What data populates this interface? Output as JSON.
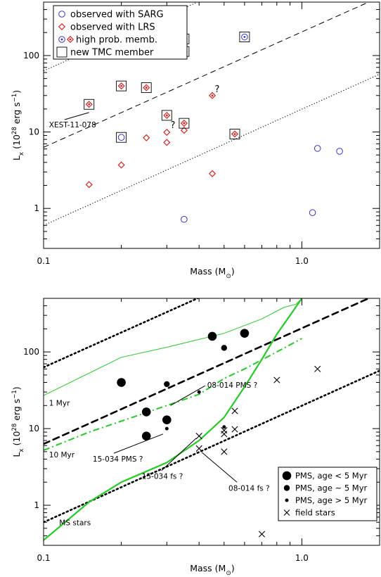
{
  "chart_data": [
    {
      "type": "scatter",
      "xscale": "log",
      "yscale": "log",
      "xlim": [
        0.1,
        2.0
      ],
      "ylim": [
        0.3,
        500
      ],
      "xticks": [
        "0.1",
        "1.0"
      ],
      "yticks": [
        "1",
        "10",
        "100"
      ],
      "xlabel": "Mass (M",
      "xlabel_sym": "⊙",
      "xlabel_end": ")",
      "ylabel": "L",
      "ylabel_sub": "x",
      "ylabel_mid": " (10",
      "ylabel_exp": "28",
      "ylabel_unit": " erg s",
      "ylabel_unit_exp": "−1",
      "ylabel_end": ")",
      "legend": {
        "position": "top-left",
        "entries": [
          {
            "label": "observed with SARG",
            "marker": "blue-circle-open"
          },
          {
            "label": "observed with LRS",
            "marker": "red-diamond-open"
          },
          {
            "label": "high prob. memb.",
            "marker": "dotted-circle-and-diamond"
          },
          {
            "label": "new TMC member",
            "marker": "square-open"
          }
        ]
      },
      "series": [
        {
          "marker": "blue-circle-open",
          "color": "#3333cc",
          "points": [
            [
              0.2,
              8.5
            ],
            [
              0.35,
              0.72
            ],
            [
              1.1,
              0.88
            ],
            [
              1.15,
              6.1
            ],
            [
              1.4,
              5.6
            ]
          ]
        },
        {
          "marker": "blue-circle-dotted",
          "color": "#3333cc",
          "points": [
            [
              0.35,
              165
            ],
            [
              0.6,
              175
            ]
          ]
        },
        {
          "marker": "red-diamond-open",
          "color": "#dd2222",
          "points": [
            [
              0.15,
              2.05
            ],
            [
              0.2,
              3.7
            ],
            [
              0.25,
              8.4
            ],
            [
              0.3,
              7.3
            ],
            [
              0.3,
              9.9
            ],
            [
              0.35,
              10.5
            ],
            [
              0.45,
              2.85
            ]
          ]
        },
        {
          "marker": "red-diamond-dotted",
          "color": "#dd2222",
          "points": [
            [
              0.15,
              23
            ],
            [
              0.2,
              40
            ],
            [
              0.25,
              38
            ],
            [
              0.3,
              16.5
            ],
            [
              0.35,
              13
            ],
            [
              0.35,
              113
            ],
            [
              0.45,
              30
            ],
            [
              0.55,
              9.4
            ]
          ]
        },
        {
          "marker": "square-open",
          "color": "#000000",
          "points": [
            [
              0.15,
              23
            ],
            [
              0.2,
              40
            ],
            [
              0.25,
              38
            ],
            [
              0.3,
              16.5
            ],
            [
              0.35,
              13
            ],
            [
              0.55,
              9.4
            ],
            [
              0.2,
              8.5
            ],
            [
              0.35,
              165
            ],
            [
              0.35,
              113
            ],
            [
              0.6,
              175
            ]
          ]
        }
      ],
      "lines": [
        {
          "style": "dashed",
          "from": [
            0.1,
            6.3
          ],
          "to": [
            2.0,
            580
          ]
        },
        {
          "style": "dotted",
          "from": [
            0.1,
            0.6
          ],
          "to": [
            2.0,
            57
          ]
        },
        {
          "style": "dotted",
          "from": [
            0.1,
            63
          ],
          "to": [
            2.0,
            5800
          ]
        }
      ],
      "annotations": [
        {
          "text": "XEST-11-078",
          "at": [
            0.105,
            11.5
          ],
          "pointer_to": [
            0.15,
            18
          ]
        },
        {
          "text": "?",
          "at": [
            0.46,
            33
          ]
        },
        {
          "text": "?",
          "at": [
            0.31,
            11.2
          ]
        }
      ]
    },
    {
      "type": "scatter",
      "xscale": "log",
      "yscale": "log",
      "xlim": [
        0.1,
        2.0
      ],
      "ylim": [
        0.3,
        500
      ],
      "xticks": [
        "0.1",
        "1.0"
      ],
      "yticks": [
        "1",
        "10",
        "100"
      ],
      "xlabel": "Mass (M",
      "xlabel_sym": "⊙",
      "xlabel_end": ")",
      "ylabel": "L",
      "ylabel_sub": "x",
      "ylabel_mid": " (10",
      "ylabel_exp": "28",
      "ylabel_unit": " erg s",
      "ylabel_unit_exp": "−1",
      "ylabel_end": ")",
      "legend": {
        "position": "bottom-right",
        "entries": [
          {
            "label": "PMS, age < 5 Myr",
            "marker": "dot-large"
          },
          {
            "label": "PMS, age ~ 5 Myr",
            "marker": "dot-medium"
          },
          {
            "label": "PMS, age > 5 Myr",
            "marker": "dot-small"
          },
          {
            "label": "field stars",
            "marker": "cross"
          }
        ]
      },
      "series": [
        {
          "name": "PMS, age < 5 Myr",
          "marker": "dot-large",
          "points": [
            [
              0.2,
              40
            ],
            [
              0.25,
              16.5
            ],
            [
              0.25,
              8
            ],
            [
              0.3,
              13
            ],
            [
              0.45,
              160
            ],
            [
              0.6,
              175
            ]
          ]
        },
        {
          "name": "PMS, age ~ 5 Myr",
          "marker": "dot-medium",
          "points": [
            [
              0.3,
              38
            ],
            [
              0.5,
              113
            ]
          ]
        },
        {
          "name": "PMS, age > 5 Myr",
          "marker": "dot-small",
          "points": [
            [
              0.3,
              10
            ],
            [
              0.4,
              30
            ],
            [
              0.5,
              10.5
            ]
          ]
        },
        {
          "name": "field stars",
          "marker": "cross",
          "points": [
            [
              0.4,
              5.5
            ],
            [
              0.4,
              8
            ],
            [
              0.5,
              5
            ],
            [
              0.5,
              8.5
            ],
            [
              0.5,
              9.5
            ],
            [
              0.55,
              17
            ],
            [
              0.55,
              9.8
            ],
            [
              0.8,
              43
            ],
            [
              1.15,
              60
            ],
            [
              0.7,
              0.42
            ]
          ]
        }
      ],
      "lines": [
        {
          "style": "dashed-thick",
          "from": [
            0.1,
            6.3
          ],
          "to": [
            2.0,
            580
          ]
        },
        {
          "style": "dotted-thick",
          "from": [
            0.1,
            0.6
          ],
          "to": [
            2.0,
            57
          ]
        },
        {
          "style": "dotted-thick",
          "from": [
            0.1,
            63
          ],
          "to": [
            2.0,
            5800
          ]
        }
      ],
      "curves": [
        {
          "label": "1 Myr",
          "color": "#22cc22",
          "style": "solid-thin",
          "points": [
            [
              0.1,
              27
            ],
            [
              0.2,
              85
            ],
            [
              0.3,
              115
            ],
            [
              0.5,
              175
            ],
            [
              0.7,
              270
            ],
            [
              0.85,
              380
            ],
            [
              0.95,
              420
            ],
            [
              1.0,
              500
            ]
          ]
        },
        {
          "label": "10 Myr",
          "color": "#22cc22",
          "style": "dash-dot",
          "points": [
            [
              0.1,
              5.2
            ],
            [
              0.15,
              9
            ],
            [
              0.2,
              12.5
            ],
            [
              0.3,
              20
            ],
            [
              0.4,
              28
            ],
            [
              0.5,
              45
            ],
            [
              0.6,
              60
            ],
            [
              0.8,
              100
            ],
            [
              1.0,
              150
            ]
          ]
        },
        {
          "label": "MS stars",
          "color": "#22cc22",
          "style": "solid-thick",
          "points": [
            [
              0.1,
              0.35
            ],
            [
              0.15,
              1.1
            ],
            [
              0.2,
              2.0
            ],
            [
              0.3,
              3.6
            ],
            [
              0.4,
              7
            ],
            [
              0.5,
              14
            ],
            [
              0.6,
              35
            ],
            [
              0.7,
              80
            ],
            [
              0.8,
              170
            ],
            [
              0.9,
              300
            ],
            [
              1.0,
              500
            ]
          ]
        }
      ],
      "annotations": [
        {
          "text": "08-014 PMS ?",
          "at": [
            0.43,
            34
          ],
          "pointer_to": [
            0.31,
            20
          ]
        },
        {
          "text": "15-034 PMS ?",
          "at": [
            0.155,
            3.7
          ],
          "pointer_to": [
            0.29,
            8.5
          ]
        },
        {
          "text": "15-034 fs ?",
          "at": [
            0.24,
            2.2
          ],
          "pointer_to": [
            0.39,
            7.5
          ]
        },
        {
          "text": "08-014 fs ?",
          "at": [
            0.52,
            1.55
          ],
          "pointer_to": [
            0.41,
            4.9
          ]
        }
      ]
    }
  ]
}
